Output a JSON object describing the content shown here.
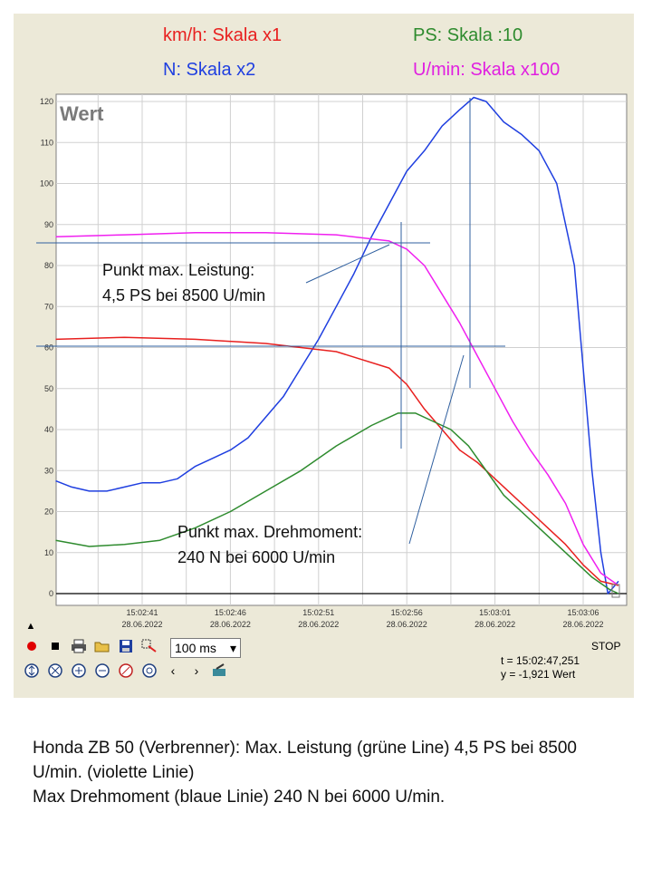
{
  "legend": {
    "kmh": "km/h: Skala x1",
    "ps": "PS: Skala :10",
    "n": "N: Skala x2",
    "umin": "U/min: Skala x100"
  },
  "colors": {
    "kmh": "#e8201f",
    "ps": "#2e8b2e",
    "n": "#1f3fe0",
    "umin": "#f020f0",
    "panel": "#ece9d8",
    "crosshair": "#2f5f9f"
  },
  "chart_data": {
    "type": "line",
    "title": "Wert",
    "ylim": [
      0,
      120
    ],
    "yticks": [
      "0",
      "10",
      "20",
      "30",
      "40",
      "50",
      "60",
      "70",
      "80",
      "90",
      "100",
      "110",
      "120"
    ],
    "xlim": [
      36,
      105
    ],
    "xticks": [
      {
        "time": "15:02:41",
        "date": "28.06.2022",
        "t": 41
      },
      {
        "time": "15:02:46",
        "date": "28.06.2022",
        "t": 46
      },
      {
        "time": "15:02:51",
        "date": "28.06.2022",
        "t": 51
      },
      {
        "time": "15:02:56",
        "date": "28.06.2022",
        "t": 56
      },
      {
        "time": "15:03:01",
        "date": "28.06.2022",
        "t": 61
      },
      {
        "time": "15:03:06",
        "date": "28.06.2022",
        "t": 66
      }
    ],
    "grid": true,
    "series": [
      {
        "name": "N",
        "color": "#1f3fe0",
        "points": [
          [
            36.1,
            27.5
          ],
          [
            37,
            26
          ],
          [
            38,
            25
          ],
          [
            39,
            25
          ],
          [
            40,
            26
          ],
          [
            41,
            27
          ],
          [
            42,
            27
          ],
          [
            43,
            28
          ],
          [
            44,
            31
          ],
          [
            45,
            33
          ],
          [
            46,
            35
          ],
          [
            47,
            38
          ],
          [
            48,
            43
          ],
          [
            49,
            48
          ],
          [
            50,
            55
          ],
          [
            51,
            62
          ],
          [
            52,
            70
          ],
          [
            53,
            78
          ],
          [
            54,
            87
          ],
          [
            55,
            95
          ],
          [
            56,
            103
          ],
          [
            57,
            108
          ],
          [
            58,
            114
          ],
          [
            59,
            118
          ],
          [
            59.8,
            121
          ],
          [
            60.5,
            120
          ],
          [
            61.5,
            115
          ],
          [
            62.5,
            112
          ],
          [
            63.5,
            108
          ],
          [
            64.5,
            100
          ],
          [
            65.5,
            80
          ],
          [
            66,
            55
          ],
          [
            66.5,
            30
          ],
          [
            67,
            10
          ],
          [
            67.4,
            0
          ],
          [
            68,
            3
          ]
        ]
      },
      {
        "name": "U/min",
        "color": "#f020f0",
        "points": [
          [
            36.1,
            87
          ],
          [
            40,
            87.5
          ],
          [
            44,
            88
          ],
          [
            48,
            88
          ],
          [
            52,
            87.5
          ],
          [
            55,
            86
          ],
          [
            56,
            84
          ],
          [
            57,
            80
          ],
          [
            58,
            73
          ],
          [
            59,
            66
          ],
          [
            60,
            58
          ],
          [
            61,
            50
          ],
          [
            62,
            42
          ],
          [
            63,
            35
          ],
          [
            64,
            29
          ],
          [
            65,
            22
          ],
          [
            66,
            12
          ],
          [
            67,
            5
          ],
          [
            68,
            2
          ]
        ]
      },
      {
        "name": "km/h",
        "color": "#e8201f",
        "points": [
          [
            36.1,
            62
          ],
          [
            40,
            62.5
          ],
          [
            44,
            62
          ],
          [
            48,
            61
          ],
          [
            52,
            59
          ],
          [
            55,
            55
          ],
          [
            56,
            51
          ],
          [
            57,
            45
          ],
          [
            58,
            40
          ],
          [
            59,
            35
          ],
          [
            60,
            32
          ],
          [
            61,
            28
          ],
          [
            62,
            24
          ],
          [
            63,
            20
          ],
          [
            64,
            16
          ],
          [
            65,
            12
          ],
          [
            66,
            7
          ],
          [
            67,
            3
          ],
          [
            68,
            2
          ]
        ]
      },
      {
        "name": "PS",
        "color": "#2e8b2e",
        "points": [
          [
            36.1,
            13
          ],
          [
            38,
            11.5
          ],
          [
            40,
            12
          ],
          [
            42,
            13
          ],
          [
            44,
            16
          ],
          [
            46,
            20
          ],
          [
            48,
            25
          ],
          [
            50,
            30
          ],
          [
            52,
            36
          ],
          [
            54,
            41
          ],
          [
            55.5,
            44
          ],
          [
            56.5,
            44
          ],
          [
            57.5,
            42
          ],
          [
            58.5,
            40
          ],
          [
            59.5,
            36
          ],
          [
            60.5,
            30
          ],
          [
            61.5,
            24
          ],
          [
            62.5,
            20
          ],
          [
            63.5,
            16
          ],
          [
            64.5,
            12
          ],
          [
            65.5,
            8
          ],
          [
            66.5,
            4
          ],
          [
            67.5,
            1
          ],
          [
            68,
            0
          ]
        ]
      }
    ]
  },
  "annotations": {
    "leistung_line1": "Punkt max. Leistung:",
    "leistung_line2": "4,5 PS bei 8500 U/min",
    "drehmoment_line1": "Punkt max. Drehmoment:",
    "drehmoment_line2": "240 N bei 6000 U/min"
  },
  "toolbar": {
    "zoom_value": "100 ms",
    "stop_label": "STOP",
    "t_readout": "t = 15:02:47,251",
    "y_readout": "y = -1,921 Wert"
  },
  "caption": {
    "line1": "Honda ZB 50 (Verbrenner):  Max. Leistung (grüne Line)  4,5 PS bei 8500 U/min.  (violette Linie)",
    "line2": "Max Drehmoment (blaue Linie) 240 N bei 6000 U/min."
  }
}
